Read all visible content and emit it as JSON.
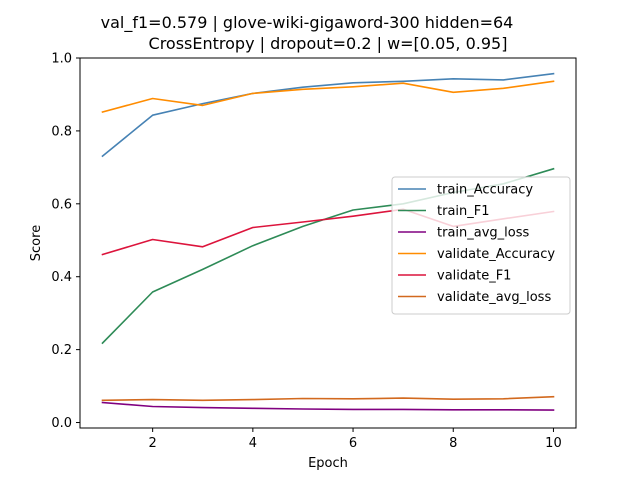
{
  "chart_data": {
    "type": "line",
    "title_line1": "val_f1=0.579 | glove-wiki-gigaword-300  hidden=64",
    "title_line2": "CrossEntropy | dropout=0.2 | w=[0.05, 0.95]",
    "xlabel": "Epoch",
    "ylabel": "Score",
    "xlim": [
      0.55,
      10.45
    ],
    "ylim": [
      -0.015,
      1.0
    ],
    "xticks": [
      2,
      4,
      6,
      8,
      10
    ],
    "yticks": [
      0.0,
      0.2,
      0.4,
      0.6,
      0.8,
      1.0
    ],
    "xtick_labels": [
      "2",
      "4",
      "6",
      "8",
      "10"
    ],
    "ytick_labels": [
      "0.0",
      "0.2",
      "0.4",
      "0.6",
      "0.8",
      "1.0"
    ],
    "grid": false,
    "legend_position": "center-right",
    "x": [
      1,
      2,
      3,
      4,
      5,
      6,
      7,
      8,
      9,
      10
    ],
    "series": [
      {
        "name": "train_Accuracy",
        "color": "#4682b4",
        "values": [
          0.731,
          0.843,
          0.875,
          0.903,
          0.92,
          0.932,
          0.936,
          0.943,
          0.94,
          0.957
        ]
      },
      {
        "name": "train_F1",
        "color": "#2e8b57",
        "values": [
          0.218,
          0.358,
          0.42,
          0.485,
          0.538,
          0.583,
          0.6,
          0.631,
          0.655,
          0.696
        ]
      },
      {
        "name": "train_avg_loss",
        "color": "#800080",
        "values": [
          0.055,
          0.044,
          0.041,
          0.039,
          0.037,
          0.036,
          0.036,
          0.035,
          0.035,
          0.034
        ]
      },
      {
        "name": "validate_Accuracy",
        "color": "#ff8c00",
        "values": [
          0.852,
          0.889,
          0.87,
          0.903,
          0.914,
          0.921,
          0.931,
          0.906,
          0.917,
          0.936
        ]
      },
      {
        "name": "validate_F1",
        "color": "#dc143c",
        "values": [
          0.461,
          0.502,
          0.482,
          0.535,
          0.55,
          0.566,
          0.585,
          0.538,
          0.559,
          0.579
        ]
      },
      {
        "name": "validate_avg_loss",
        "color": "#d2691e",
        "values": [
          0.061,
          0.063,
          0.061,
          0.063,
          0.066,
          0.065,
          0.067,
          0.064,
          0.065,
          0.071
        ]
      }
    ]
  }
}
